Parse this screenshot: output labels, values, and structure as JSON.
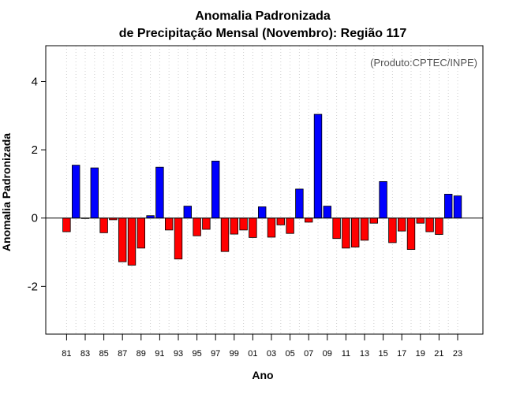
{
  "chart_data": {
    "type": "bar",
    "title_line1": "Anomalia Padronizada",
    "title_line2": "de Precipitação Mensal (Novembro): Região 117",
    "xlabel": "Ano",
    "ylabel": "Anomalia Padronizada",
    "credit": "(Produto:CPTEC/INPE)",
    "ylim": [
      -3.4,
      5.05
    ],
    "yticks": [
      -2,
      0,
      2,
      4
    ],
    "ytick_labels": [
      "-2",
      "0",
      "2",
      "4"
    ],
    "grid": "vertical dotted",
    "colors": {
      "positive": "#0000ff",
      "negative": "#ff0000"
    },
    "xtick_labels": [
      "81",
      "83",
      "85",
      "87",
      "89",
      "91",
      "93",
      "95",
      "97",
      "99",
      "01",
      "03",
      "05",
      "07",
      "09",
      "11",
      "13",
      "15",
      "17",
      "19",
      "21",
      "23"
    ],
    "categories": [
      "1981",
      "1982",
      "1983",
      "1984",
      "1985",
      "1986",
      "1987",
      "1988",
      "1989",
      "1990",
      "1991",
      "1992",
      "1993",
      "1994",
      "1995",
      "1996",
      "1997",
      "1998",
      "1999",
      "2000",
      "2001",
      "2002",
      "2003",
      "2004",
      "2005",
      "2006",
      "2007",
      "2008",
      "2009",
      "2010",
      "2011",
      "2012",
      "2013",
      "2014",
      "2015",
      "2016",
      "2017",
      "2018",
      "2019",
      "2020",
      "2021",
      "2022",
      "2023"
    ],
    "values": [
      -0.4,
      1.55,
      0.0,
      1.47,
      -0.43,
      -0.05,
      -1.28,
      -1.38,
      -0.88,
      0.07,
      1.49,
      -0.35,
      -1.2,
      0.35,
      -0.52,
      -0.33,
      1.67,
      -0.98,
      -0.47,
      -0.35,
      -0.57,
      0.33,
      -0.56,
      -0.2,
      -0.45,
      0.85,
      -0.12,
      3.04,
      0.35,
      -0.6,
      -0.88,
      -0.85,
      -0.65,
      -0.15,
      1.07,
      -0.72,
      -0.38,
      -0.92,
      -0.15,
      -0.4,
      -0.48,
      0.7,
      0.65
    ]
  }
}
